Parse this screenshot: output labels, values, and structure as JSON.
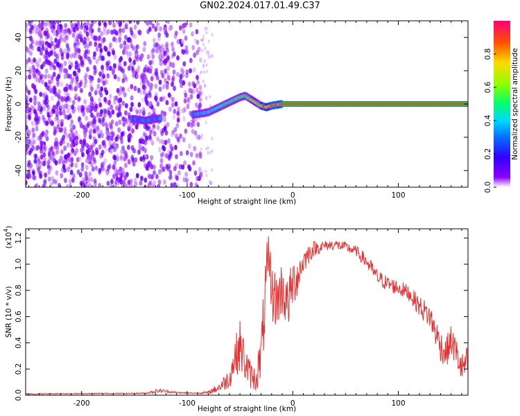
{
  "title": "GN02.2024.017.01.49.C37",
  "chart_data": [
    {
      "type": "heatmap",
      "title": "GN02.2024.017.01.49.C37",
      "xlabel": "Height of straight line (km)",
      "ylabel": "Frequency (Hz)",
      "xlim": [
        -253,
        166
      ],
      "ylim": [
        -50,
        50
      ],
      "x_ticks": [
        -200,
        -100,
        0,
        100
      ],
      "y_ticks": [
        -40,
        -20,
        0,
        20,
        40
      ],
      "x_tick_labels": [
        "-200",
        "-100",
        "0",
        "100"
      ],
      "y_tick_labels": [
        "-40",
        "-20",
        "0",
        "20",
        "40"
      ],
      "tone_track": {
        "x": [
          -150,
          -140,
          -130,
          -90,
          -80,
          -70,
          -60,
          -50,
          -45,
          -40,
          -35,
          -30,
          -25,
          -20,
          -10,
          0,
          50,
          100,
          150,
          166
        ],
        "frequency": [
          -9,
          -10,
          -9,
          -6,
          -5,
          -2,
          1,
          4,
          5,
          3,
          1,
          -1,
          -2,
          -1,
          0,
          0,
          0,
          0,
          0,
          0
        ]
      },
      "colorbar": {
        "label": "Normalized spectral amplitude",
        "range": [
          0,
          1
        ],
        "ticks": [
          0.0,
          0.2,
          0.4,
          0.6,
          0.8
        ],
        "tick_labels": [
          "0.0",
          "0.2",
          "0.4",
          "0.6",
          "0.8"
        ]
      }
    },
    {
      "type": "line",
      "xlabel": "Height of straight line (km)",
      "ylabel": "SNR (10 * v/v)",
      "exponent_label": "(x10",
      "exponent_power": "4",
      "exponent_close": ")",
      "xlim": [
        -253,
        166
      ],
      "ylim": [
        0,
        1.27
      ],
      "x_ticks": [
        -200,
        -100,
        0,
        100
      ],
      "y_ticks": [
        0.0,
        0.2,
        0.4,
        0.6,
        0.8,
        1.0,
        1.2
      ],
      "x_tick_labels": [
        "-200",
        "-100",
        "0",
        "100"
      ],
      "y_tick_labels": [
        "0.0",
        "0.2",
        "0.4",
        "0.6",
        "0.8",
        "1.0",
        "1.2"
      ],
      "series": [
        {
          "name": "SNR",
          "color": "#e8302e",
          "x": [
            -253,
            -240,
            -220,
            -200,
            -180,
            -160,
            -140,
            -130,
            -125,
            -110,
            -95,
            -80,
            -70,
            -60,
            -55,
            -50,
            -45,
            -40,
            -35,
            -30,
            -25,
            -22,
            -20,
            -15,
            -10,
            -5,
            0,
            5,
            10,
            15,
            20,
            25,
            30,
            40,
            50,
            60,
            70,
            80,
            90,
            100,
            110,
            120,
            130,
            140,
            145,
            150,
            155,
            160,
            166
          ],
          "values": [
            0.01,
            0.01,
            0.012,
            0.012,
            0.013,
            0.013,
            0.015,
            0.03,
            0.035,
            0.02,
            0.015,
            0.02,
            0.06,
            0.13,
            0.28,
            0.38,
            0.25,
            0.15,
            0.12,
            0.3,
            0.85,
            1.0,
            0.78,
            0.72,
            0.82,
            0.68,
            0.85,
            0.92,
            1.02,
            1.08,
            1.12,
            1.13,
            1.14,
            1.15,
            1.13,
            1.1,
            1.02,
            0.9,
            0.85,
            0.82,
            0.78,
            0.68,
            0.6,
            0.38,
            0.32,
            0.42,
            0.32,
            0.2,
            0.26
          ],
          "noise_amplitude": [
            0.004,
            0.004,
            0.004,
            0.004,
            0.004,
            0.004,
            0.005,
            0.015,
            0.015,
            0.006,
            0.005,
            0.01,
            0.04,
            0.08,
            0.15,
            0.2,
            0.16,
            0.1,
            0.1,
            0.2,
            0.3,
            0.25,
            0.22,
            0.22,
            0.22,
            0.2,
            0.2,
            0.15,
            0.1,
            0.08,
            0.06,
            0.05,
            0.04,
            0.04,
            0.04,
            0.04,
            0.06,
            0.06,
            0.06,
            0.06,
            0.06,
            0.08,
            0.1,
            0.12,
            0.12,
            0.12,
            0.12,
            0.12,
            0.12
          ]
        }
      ]
    }
  ]
}
